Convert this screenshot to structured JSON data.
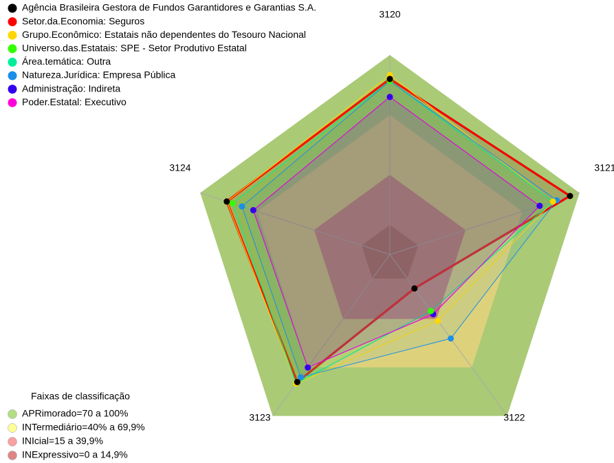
{
  "chart_data": {
    "type": "radar",
    "categories": [
      "3120",
      "3121",
      "3122",
      "3123",
      "3124"
    ],
    "rlim": [
      0,
      100
    ],
    "series": [
      {
        "name": "Agência Brasileira Gestora de Fundos Garantidores e Garantias S.A.",
        "color": "#000000",
        "values": [
          88,
          95,
          21,
          79,
          86
        ]
      },
      {
        "name": "Setor.da.Economia: Seguros",
        "color": "#ff0000",
        "values": [
          88,
          95,
          21,
          79,
          86
        ]
      },
      {
        "name": "Grupo.Econômico: Estatais não dependentes do Tesouro Nacional",
        "color": "#ffd700",
        "values": [
          90,
          86,
          41,
          80,
          86
        ]
      },
      {
        "name": "Universo.das.Estatais: SPE - Setor Produtivo Estatal",
        "color": "#33ff00",
        "values": [
          87,
          86,
          35,
          80,
          83
        ]
      },
      {
        "name": "Área.temática: Outra",
        "color": "#00ee99",
        "values": [
          87,
          86,
          35,
          80,
          83
        ]
      },
      {
        "name": "Natureza.Jurídica: Empresa Pública",
        "color": "#1a8fe8",
        "values": [
          87,
          88,
          52,
          76,
          78
        ]
      },
      {
        "name": "Administração: Indireta",
        "color": "#3300ee",
        "values": [
          79,
          79,
          37,
          70,
          72
        ]
      },
      {
        "name": "Poder.Estatal: Executivo",
        "color": "#ff00dd",
        "values": [
          79,
          79,
          37,
          70,
          72
        ]
      }
    ],
    "bands_title": "Faixas de classificação",
    "bands": [
      {
        "name": "APRimorado=70 a 100%",
        "color": "#b3de83",
        "range": [
          70,
          100
        ]
      },
      {
        "name": "INTermediário=40% a 69,9%",
        "color": "#ffff99",
        "range": [
          40,
          69.9
        ]
      },
      {
        "name": "INIcial=15 a 39,9%",
        "color": "#f7a1a1",
        "range": [
          15,
          39.9
        ]
      },
      {
        "name": "INExpressivo=0 a 14,9%",
        "color": "#e08585",
        "range": [
          0,
          14.9
        ]
      }
    ]
  }
}
